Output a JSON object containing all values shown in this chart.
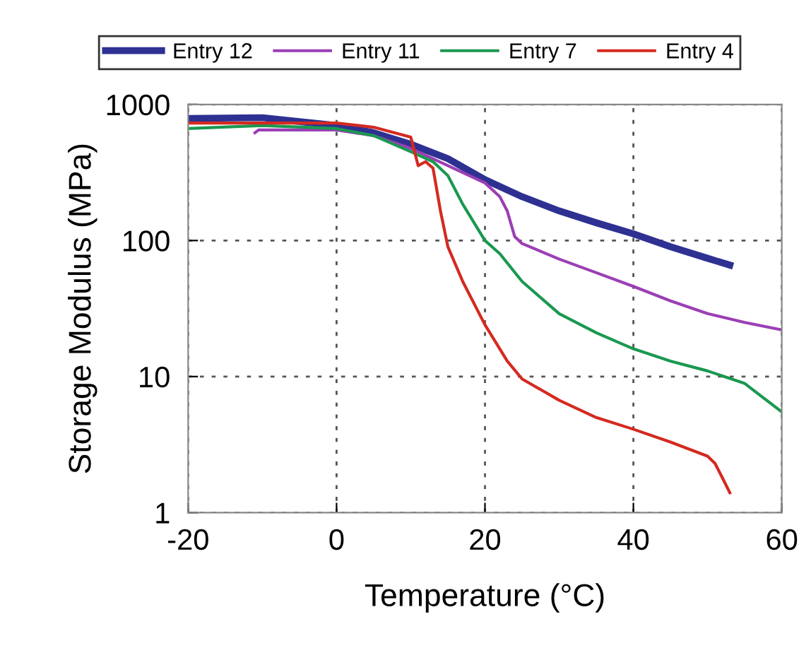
{
  "chart_data": {
    "type": "line",
    "xlabel": "Temperature (°C)",
    "ylabel": "Storage Modulus (MPa)",
    "log": true,
    "xlim": [
      -20,
      60
    ],
    "xticks": [
      -20,
      0,
      20,
      40,
      60
    ],
    "ylim": [
      1,
      1000
    ],
    "yticks": [
      1,
      10,
      100,
      1000
    ],
    "grid": true,
    "legend": "top",
    "marker": "none",
    "line_style": "solid",
    "series": [
      {
        "name": "Entry 12",
        "color": "#2e3192",
        "x": [
          -20,
          -10,
          0,
          5,
          10,
          15,
          20,
          25,
          30,
          35,
          40,
          45,
          50,
          53
        ],
        "values": [
          790,
          800,
          700,
          620,
          510,
          400,
          280,
          210,
          165,
          135,
          112,
          90,
          74,
          66
        ]
      },
      {
        "name": "Entry 11",
        "color": "#9b3fb5",
        "x": [
          -11,
          -10.5,
          0,
          5,
          10,
          15,
          20,
          22,
          23,
          24,
          25,
          30,
          35,
          40,
          45,
          50,
          55,
          60
        ],
        "values": [
          620,
          650,
          650,
          590,
          475,
          355,
          265,
          210,
          165,
          107,
          95,
          73,
          58,
          46,
          36,
          29,
          25,
          22
        ]
      },
      {
        "name": "Entry 7",
        "color": "#1a9850",
        "x": [
          -20,
          -10,
          0,
          5,
          10,
          13,
          15,
          17,
          20,
          22,
          25,
          30,
          35,
          40,
          45,
          50,
          55,
          60
        ],
        "values": [
          665,
          700,
          665,
          590,
          450,
          380,
          300,
          185,
          100,
          80,
          50,
          29,
          21,
          16,
          13,
          11,
          8.9,
          5.5
        ]
      },
      {
        "name": "Entry 4",
        "color": "#d42a20",
        "x": [
          -20,
          -10,
          0,
          5,
          10,
          11,
          12,
          13,
          14,
          15,
          17,
          20,
          23,
          25,
          30,
          35,
          40,
          45,
          50,
          51,
          52,
          53
        ],
        "values": [
          730,
          730,
          730,
          680,
          575,
          355,
          380,
          340,
          165,
          90,
          50,
          24,
          13,
          9.6,
          6.7,
          5,
          4.1,
          3.3,
          2.6,
          2.3,
          1.8,
          1.4
        ]
      }
    ]
  }
}
